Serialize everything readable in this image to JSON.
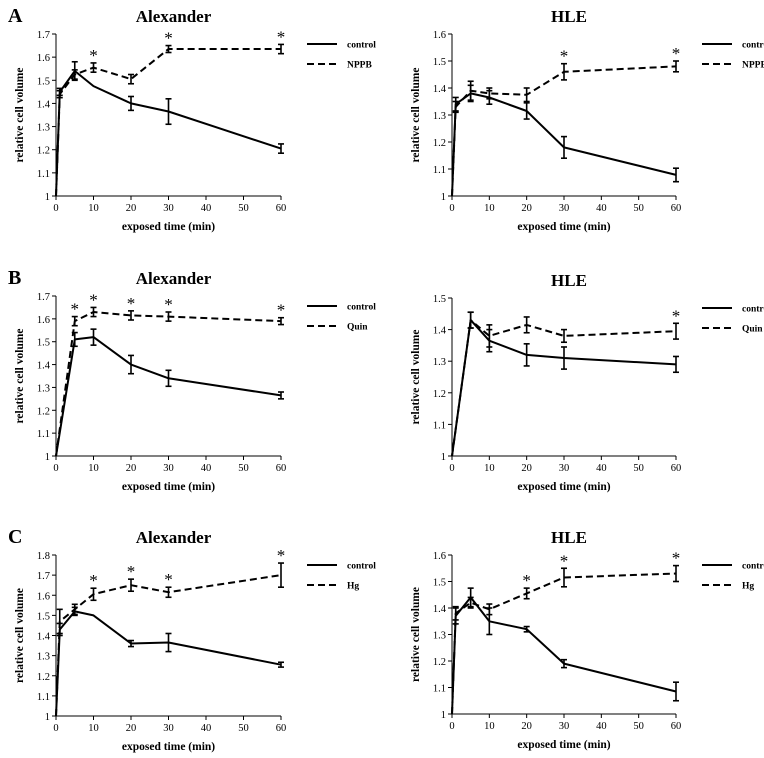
{
  "chart_data": [
    {
      "type": "line",
      "panel_letter": "A",
      "title": "Alexander",
      "xlabel": "exposed time (min)",
      "ylabel": "relative cell volume",
      "xlim": [
        0,
        60
      ],
      "ylim": [
        1,
        1.7
      ],
      "xticks": [
        "0",
        "10",
        "20",
        "30",
        "40",
        "50",
        "60"
      ],
      "yticks": [
        "1",
        "1.1",
        "1.2",
        "1.3",
        "1.4",
        "1.5",
        "1.6",
        "1.7"
      ],
      "legend_placement": "top-right",
      "grid": false,
      "series": [
        {
          "name": "control",
          "style": "solid",
          "x": [
            0,
            1,
            5,
            10,
            20,
            30,
            60
          ],
          "y": [
            1,
            1.45,
            1.54,
            1.475,
            1.4,
            1.365,
            1.205
          ],
          "err": [
            0,
            0.015,
            0.04,
            0,
            0.03,
            0.055,
            0.02
          ]
        },
        {
          "name": "NPPB",
          "style": "dashed",
          "x": [
            0,
            1,
            5,
            10,
            20,
            30,
            60
          ],
          "y": [
            1,
            1.44,
            1.525,
            1.555,
            1.505,
            1.635,
            1.635
          ],
          "err": [
            0,
            0.015,
            0.02,
            0.02,
            0.02,
            0.015,
            0.02
          ]
        }
      ],
      "significance": [
        10,
        30,
        60
      ],
      "significance_label": "*"
    },
    {
      "type": "line",
      "panel_letter": "",
      "title": "HLE",
      "xlabel": "exposed time (min)",
      "ylabel": "relative cell volume",
      "xlim": [
        0,
        60
      ],
      "ylim": [
        1,
        1.6
      ],
      "xticks": [
        "0",
        "10",
        "20",
        "30",
        "40",
        "50",
        "60"
      ],
      "yticks": [
        "1",
        "1.1",
        "1.2",
        "1.3",
        "1.4",
        "1.5",
        "1.6"
      ],
      "legend_placement": "top-right",
      "grid": false,
      "series": [
        {
          "name": "control",
          "style": "solid",
          "x": [
            0,
            1,
            5,
            10,
            20,
            30,
            60
          ],
          "y": [
            1,
            1.34,
            1.38,
            1.365,
            1.315,
            1.18,
            1.078
          ],
          "err": [
            0,
            0.025,
            0.03,
            0.025,
            0.03,
            0.04,
            0.025
          ]
        },
        {
          "name": "NPPB",
          "style": "dashed",
          "x": [
            0,
            1,
            5,
            10,
            20,
            30,
            60
          ],
          "y": [
            1,
            1.33,
            1.39,
            1.38,
            1.375,
            1.46,
            1.48
          ],
          "err": [
            0,
            0.02,
            0.035,
            0.02,
            0.025,
            0.03,
            0.02
          ]
        }
      ],
      "significance": [
        30,
        60
      ],
      "significance_label": "*"
    },
    {
      "type": "line",
      "panel_letter": "B",
      "title": "Alexander",
      "xlabel": "exposed time (min)",
      "ylabel": "relative cell volume",
      "xlim": [
        0,
        60
      ],
      "ylim": [
        1,
        1.7
      ],
      "xticks": [
        "0",
        "10",
        "20",
        "30",
        "40",
        "50",
        "60"
      ],
      "yticks": [
        "1",
        "1.1",
        "1.2",
        "1.3",
        "1.4",
        "1.5",
        "1.6",
        "1.7"
      ],
      "legend_placement": "top-right",
      "grid": false,
      "series": [
        {
          "name": "control",
          "style": "solid",
          "x": [
            0,
            5,
            10,
            20,
            30,
            60
          ],
          "y": [
            1,
            1.51,
            1.52,
            1.4,
            1.34,
            1.265
          ],
          "err": [
            0,
            0.03,
            0.035,
            0.04,
            0.035,
            0.015
          ]
        },
        {
          "name": "Quin",
          "style": "dashed",
          "x": [
            0,
            5,
            10,
            20,
            30,
            60
          ],
          "y": [
            1,
            1.59,
            1.63,
            1.615,
            1.61,
            1.59
          ],
          "err": [
            0,
            0.02,
            0.02,
            0.02,
            0.02,
            0.015
          ]
        }
      ],
      "significance": [
        5,
        10,
        20,
        30,
        60
      ],
      "significance_label": "*"
    },
    {
      "type": "line",
      "panel_letter": "",
      "title": "HLE",
      "xlabel": "exposed time (min)",
      "ylabel": "relative cell volume",
      "xlim": [
        0,
        60
      ],
      "ylim": [
        1,
        1.5
      ],
      "xticks": [
        "0",
        "10",
        "20",
        "30",
        "40",
        "50",
        "60"
      ],
      "yticks": [
        "1",
        "1.1",
        "1.2",
        "1.3",
        "1.4",
        "1.5"
      ],
      "legend_placement": "top-right",
      "grid": false,
      "series": [
        {
          "name": "control",
          "style": "solid",
          "x": [
            0,
            5,
            10,
            20,
            30,
            60
          ],
          "y": [
            1,
            1.43,
            1.365,
            1.32,
            1.31,
            1.29
          ],
          "err": [
            0,
            0.025,
            0.035,
            0.035,
            0.035,
            0.025
          ]
        },
        {
          "name": "Quin",
          "style": "dashed",
          "x": [
            0,
            5,
            10,
            20,
            30,
            60
          ],
          "y": [
            1,
            1.43,
            1.38,
            1.415,
            1.38,
            1.395
          ],
          "err": [
            0,
            0.025,
            0.035,
            0.025,
            0.02,
            0.025
          ]
        }
      ],
      "significance": [
        60
      ],
      "significance_label": "*"
    },
    {
      "type": "line",
      "panel_letter": "C",
      "title": "Alexander",
      "xlabel": "exposed time (min)",
      "ylabel": "relative cell volume",
      "xlim": [
        0,
        60
      ],
      "ylim": [
        1,
        1.8
      ],
      "xticks": [
        "0",
        "10",
        "20",
        "30",
        "40",
        "50",
        "60"
      ],
      "yticks": [
        "1",
        "1.1",
        "1.2",
        "1.3",
        "1.4",
        "1.5",
        "1.6",
        "1.7",
        "1.8"
      ],
      "legend_placement": "top-right",
      "grid": false,
      "series": [
        {
          "name": "control",
          "style": "solid",
          "x": [
            0,
            1,
            5,
            10,
            20,
            30,
            60
          ],
          "y": [
            1,
            1.43,
            1.52,
            1.5,
            1.36,
            1.365,
            1.255
          ],
          "err": [
            0,
            0.03,
            0.02,
            0,
            0.015,
            0.045,
            0.012
          ]
        },
        {
          "name": "Hg",
          "style": "dashed",
          "x": [
            0,
            1,
            5,
            10,
            20,
            30,
            60
          ],
          "y": [
            1,
            1.47,
            1.53,
            1.605,
            1.65,
            1.615,
            1.7
          ],
          "err": [
            0,
            0.06,
            0.025,
            0.03,
            0.03,
            0.025,
            0.06
          ]
        }
      ],
      "significance": [
        10,
        20,
        30,
        60
      ],
      "significance_label": "*"
    },
    {
      "type": "line",
      "panel_letter": "",
      "title": "HLE",
      "xlabel": "exposed time (min)",
      "ylabel": "relative cell volume",
      "xlim": [
        0,
        60
      ],
      "ylim": [
        1,
        1.6
      ],
      "xticks": [
        "0",
        "10",
        "20",
        "30",
        "40",
        "50",
        "60"
      ],
      "yticks": [
        "1",
        "1.1",
        "1.2",
        "1.3",
        "1.4",
        "1.5",
        "1.6"
      ],
      "legend_placement": "top-right",
      "grid": false,
      "series": [
        {
          "name": "control",
          "style": "solid",
          "x": [
            0,
            1,
            5,
            10,
            20,
            30,
            60
          ],
          "y": [
            1,
            1.37,
            1.44,
            1.35,
            1.32,
            1.19,
            1.085
          ],
          "err": [
            0,
            0.03,
            0.035,
            0.05,
            0.01,
            0.015,
            0.035
          ]
        },
        {
          "name": "Hg",
          "style": "dashed",
          "x": [
            0,
            1,
            5,
            10,
            20,
            30,
            60
          ],
          "y": [
            1,
            1.38,
            1.42,
            1.395,
            1.455,
            1.515,
            1.53
          ],
          "err": [
            0,
            0.025,
            0.02,
            0.02,
            0.02,
            0.035,
            0.03
          ]
        }
      ],
      "significance": [
        20,
        30,
        60
      ],
      "significance_label": "*"
    }
  ]
}
